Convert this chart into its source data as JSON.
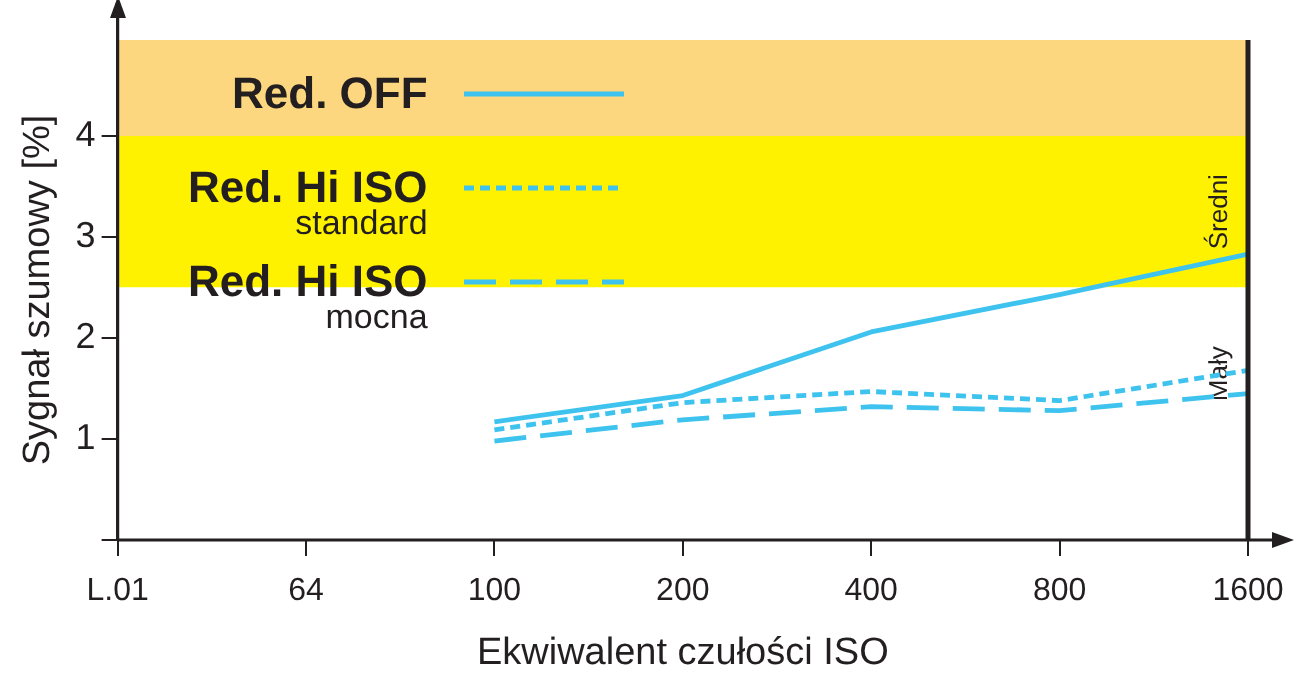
{
  "chart_data": {
    "type": "line",
    "xlabel": "Ekwiwalent czułości ISO",
    "ylabel": "Sygnał szumowy [%]",
    "categories": [
      "L.01",
      "64",
      "100",
      "200",
      "400",
      "800",
      "1600"
    ],
    "ylim": [
      0,
      4.95
    ],
    "yticks": [
      {
        "value": 0,
        "label": null
      },
      1,
      2,
      3,
      4
    ],
    "grid": false,
    "legend": "top left",
    "marker": "none",
    "series": [
      {
        "name": "Red. OFF",
        "color": "#3ec3ef",
        "line_style": "solid",
        "values": [
          null,
          null,
          1.17,
          1.43,
          2.06,
          2.43,
          2.83
        ]
      },
      {
        "name": "Red. Hi ISO\nstandard",
        "color": "#3ec3ef",
        "line_style": "dotted",
        "values": [
          null,
          null,
          1.09,
          1.36,
          1.47,
          1.38,
          1.68
        ]
      },
      {
        "name": "Red. Hi ISO\nmocna",
        "color": "#3ec3ef",
        "line_style": "dashed",
        "values": [
          null,
          null,
          0.98,
          1.19,
          1.32,
          1.28,
          1.45
        ]
      }
    ],
    "bands": [
      {
        "axis": "y",
        "from": 4,
        "to": 4.95,
        "color": "#fdd77f"
      },
      {
        "axis": "y",
        "from": 2.5,
        "to": 4,
        "color": "#fff200",
        "label": "Średni"
      },
      {
        "axis": "y",
        "from": 0,
        "to": 2.5,
        "color": "#ffffff",
        "label": "Mały"
      }
    ]
  }
}
